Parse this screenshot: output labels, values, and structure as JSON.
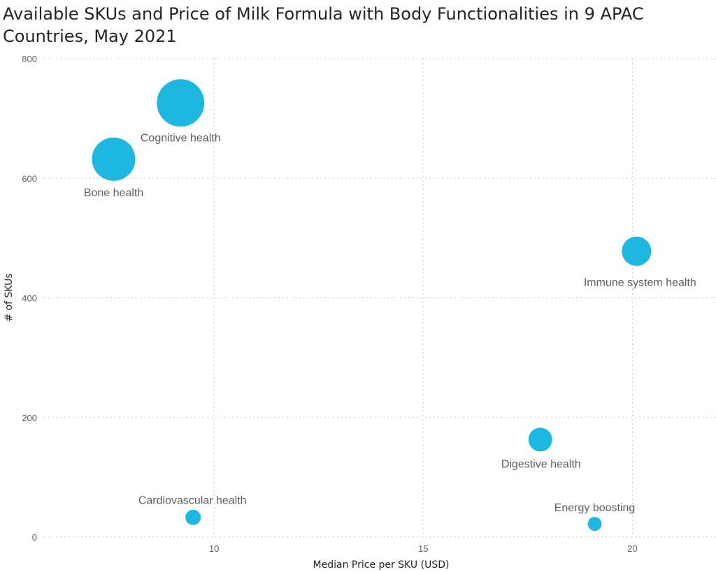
{
  "chart_data": {
    "type": "scatter",
    "title": "Available SKUs and Price of Milk Formula with Body Functionalities in 9 APAC Countries, May 2021",
    "xlabel": "Median Price per SKU (USD)",
    "ylabel": "# of SKUs",
    "xlim": [
      5,
      22
    ],
    "ylim": [
      0,
      800
    ],
    "xticks": [
      10,
      15,
      20
    ],
    "yticks": [
      0,
      200,
      400,
      600,
      800
    ],
    "grid": true,
    "bubble": true,
    "color": "#1eb7e0",
    "points": [
      {
        "label": "Cognitive health",
        "x": 9.2,
        "y": 726,
        "size": 34
      },
      {
        "label": "Bone health",
        "x": 7.6,
        "y": 632,
        "size": 31
      },
      {
        "label": "Immune system health",
        "x": 20.1,
        "y": 478,
        "size": 21
      },
      {
        "label": "Digestive health",
        "x": 17.8,
        "y": 163,
        "size": 17
      },
      {
        "label": "Cardiovascular health",
        "x": 9.5,
        "y": 33,
        "size": 11
      },
      {
        "label": "Energy boosting",
        "x": 19.1,
        "y": 22,
        "size": 10
      }
    ]
  }
}
